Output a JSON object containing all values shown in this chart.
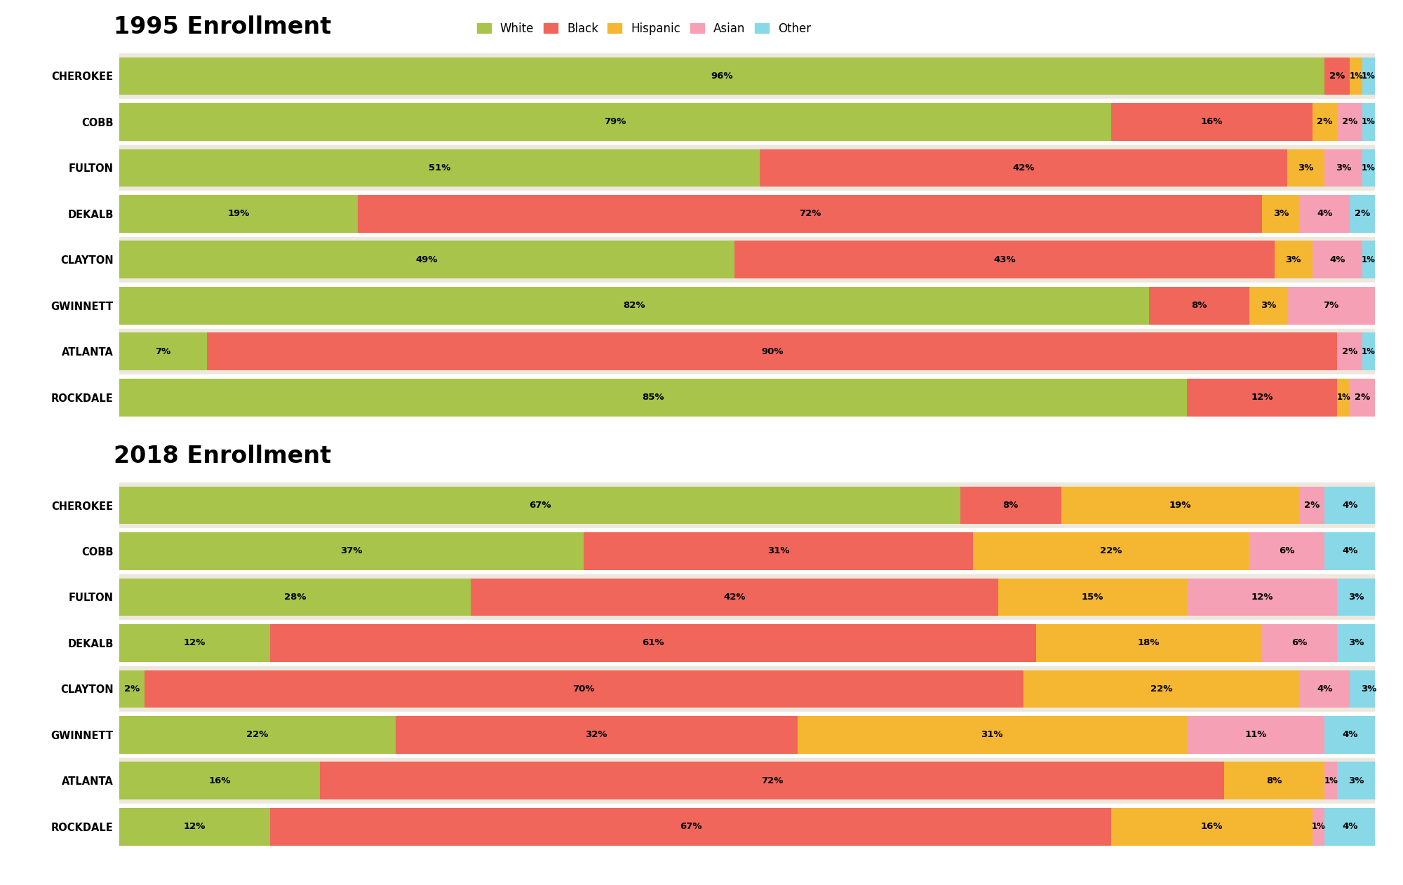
{
  "title_1995": "1995 Enrollment",
  "title_2018": "2018 Enrollment",
  "categories": [
    "CHEROKEE",
    "COBB",
    "FULTON",
    "DEKALB",
    "CLAYTON",
    "GWINNETT",
    "ATLANTA",
    "ROCKDALE"
  ],
  "colors": {
    "White": "#a8c44b",
    "Black": "#f0665a",
    "Hispanic": "#f5b731",
    "Asian": "#f5a0b4",
    "Other": "#89d8e8"
  },
  "data_1995": [
    {
      "White": 96,
      "Black": 2,
      "Hispanic": 1,
      "Asian": 0,
      "Other": 1
    },
    {
      "White": 79,
      "Black": 16,
      "Hispanic": 2,
      "Asian": 2,
      "Other": 1
    },
    {
      "White": 51,
      "Black": 42,
      "Hispanic": 3,
      "Asian": 3,
      "Other": 1
    },
    {
      "White": 19,
      "Black": 72,
      "Hispanic": 3,
      "Asian": 4,
      "Other": 2
    },
    {
      "White": 49,
      "Black": 43,
      "Hispanic": 3,
      "Asian": 4,
      "Other": 1
    },
    {
      "White": 82,
      "Black": 8,
      "Hispanic": 3,
      "Asian": 7,
      "Other": 0
    },
    {
      "White": 7,
      "Black": 90,
      "Hispanic": 0,
      "Asian": 2,
      "Other": 1
    },
    {
      "White": 85,
      "Black": 12,
      "Hispanic": 1,
      "Asian": 2,
      "Other": 0
    }
  ],
  "data_2018": [
    {
      "White": 67,
      "Black": 8,
      "Hispanic": 19,
      "Asian": 2,
      "Other": 4
    },
    {
      "White": 37,
      "Black": 31,
      "Hispanic": 22,
      "Asian": 6,
      "Other": 4
    },
    {
      "White": 28,
      "Black": 42,
      "Hispanic": 15,
      "Asian": 12,
      "Other": 3
    },
    {
      "White": 12,
      "Black": 61,
      "Hispanic": 18,
      "Asian": 6,
      "Other": 3
    },
    {
      "White": 2,
      "Black": 70,
      "Hispanic": 22,
      "Asian": 4,
      "Other": 3
    },
    {
      "White": 22,
      "Black": 32,
      "Hispanic": 31,
      "Asian": 11,
      "Other": 4
    },
    {
      "White": 16,
      "Black": 72,
      "Hispanic": 8,
      "Asian": 1,
      "Other": 3
    },
    {
      "White": 12,
      "Black": 67,
      "Hispanic": 16,
      "Asian": 1,
      "Other": 4
    }
  ],
  "bg_white": "#ffffff",
  "bg_label": "#ede8de",
  "bar_height": 0.82,
  "title_fontsize": 24,
  "label_fontsize": 9.5,
  "category_fontsize": 10.5,
  "legend_fontsize": 12
}
